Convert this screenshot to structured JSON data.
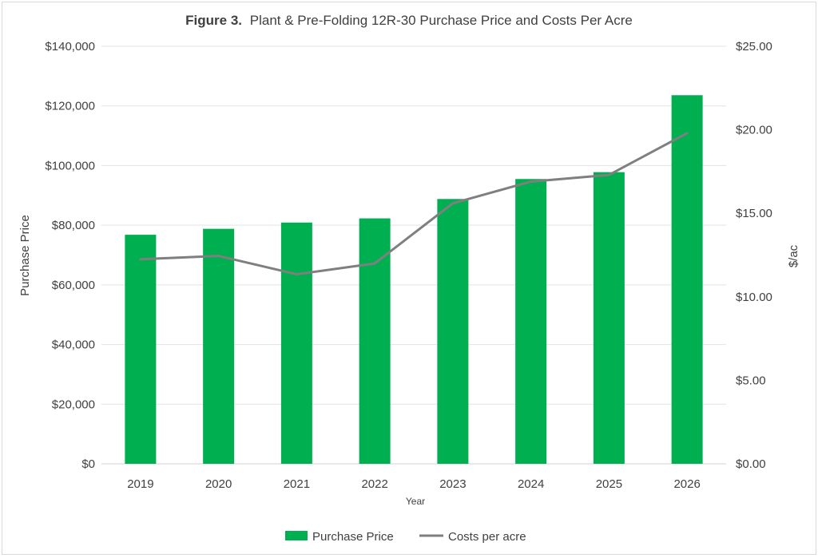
{
  "chart_data": {
    "type": "bar",
    "title_prefix": "Figure 3.",
    "title": "Plant & Pre-Folding 12R-30 Purchase Price and Costs Per Acre",
    "xlabel": "Year",
    "ylabel": "Purchase Price",
    "y2label": "$/ac",
    "categories": [
      "2019",
      "2020",
      "2021",
      "2022",
      "2023",
      "2024",
      "2025",
      "2026"
    ],
    "ylim": [
      0,
      140000
    ],
    "y_ticks": [
      "$0",
      "$20,000",
      "$40,000",
      "$60,000",
      "$80,000",
      "$100,000",
      "$120,000",
      "$140,000"
    ],
    "y2lim": [
      0,
      25
    ],
    "y2_ticks": [
      "$0.00",
      "$5.00",
      "$10.00",
      "$15.00",
      "$20.00",
      "$25.00"
    ],
    "grid": true,
    "legend_position": "bottom",
    "series": [
      {
        "name": "Purchase Price",
        "type": "bar",
        "axis": "left",
        "color": "#00b050",
        "values": [
          76800,
          78800,
          80900,
          82300,
          88800,
          95500,
          97800,
          123600
        ]
      },
      {
        "name": "Costs per acre",
        "type": "line",
        "axis": "right",
        "color": "#7f7f7f",
        "values": [
          12.25,
          12.45,
          11.35,
          12.0,
          15.6,
          16.9,
          17.3,
          19.8
        ]
      }
    ]
  }
}
